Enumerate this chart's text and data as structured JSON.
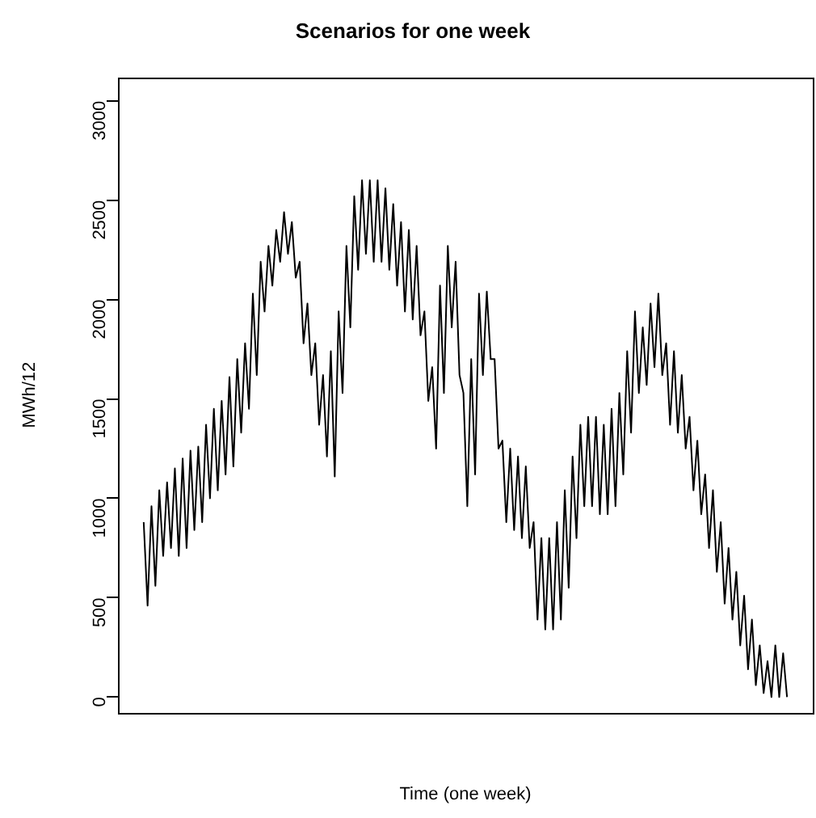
{
  "chart_data": {
    "type": "line",
    "title": "Scenarios for one week",
    "xlabel": "Time (one week)",
    "ylabel": "MWh/12",
    "categories": [
      null,
      null,
      null,
      null,
      null,
      null,
      null,
      null,
      null,
      null,
      null,
      null,
      null,
      null,
      null,
      null,
      null,
      null,
      null,
      null,
      null,
      null,
      null,
      null,
      null,
      null,
      null,
      null,
      null,
      null,
      null,
      null,
      null,
      null,
      null,
      null,
      null,
      null,
      null,
      null,
      null,
      null,
      null,
      null,
      null,
      null,
      null,
      null,
      null,
      null,
      null,
      null,
      null,
      null,
      null,
      null,
      null,
      null,
      null,
      null,
      null,
      null,
      null,
      null,
      null,
      null,
      null,
      null,
      null,
      null,
      null,
      null,
      null,
      null,
      null,
      null,
      null,
      null,
      null,
      null,
      null,
      null,
      null,
      null,
      null,
      null,
      null,
      null,
      null,
      null,
      null,
      null,
      null,
      null,
      null,
      null,
      null,
      null,
      null,
      null,
      null,
      null,
      null,
      null,
      null,
      null,
      null,
      null,
      null,
      null,
      null,
      null,
      null,
      null,
      null,
      null,
      null,
      null,
      null,
      null,
      null,
      null,
      null,
      null,
      null,
      null,
      null,
      null,
      null,
      null,
      null,
      null,
      null,
      null,
      null,
      null,
      null,
      null,
      null,
      null,
      null,
      null,
      null,
      null,
      null,
      null,
      null,
      null,
      null,
      null,
      null,
      null,
      null,
      null,
      null,
      null,
      null,
      null,
      null,
      null,
      null,
      null,
      null,
      null,
      null,
      null
    ],
    "series": [
      {
        "color": "#000000",
        "values": [
          880,
          460,
          960,
          560,
          1040,
          710,
          1080,
          750,
          1150,
          710,
          1200,
          750,
          1240,
          840,
          1260,
          880,
          1370,
          1000,
          1450,
          1040,
          1490,
          1120,
          1610,
          1160,
          1700,
          1330,
          1780,
          1450,
          2030,
          1620,
          2190,
          1940,
          2270,
          2070,
          2350,
          2190,
          2440,
          2230,
          2390,
          2110,
          2190,
          1780,
          1980,
          1620,
          1780,
          1370,
          1620,
          1210,
          1740,
          1110,
          1940,
          1530,
          2270,
          1860,
          2520,
          2150,
          2600,
          2230,
          2600,
          2190,
          2600,
          2190,
          2560,
          2150,
          2480,
          2070,
          2390,
          1940,
          2350,
          1900,
          2270,
          1820,
          1940,
          1490,
          1660,
          1250,
          2070,
          1530,
          2270,
          1860,
          2190,
          1620,
          1530,
          960,
          1700,
          1120,
          2030,
          1620,
          2040,
          1700,
          1700,
          1250,
          1290,
          880,
          1250,
          840,
          1210,
          800,
          1160,
          750,
          880,
          390,
          800,
          340,
          800,
          340,
          880,
          390,
          1040,
          550,
          1210,
          800,
          1370,
          960,
          1410,
          960,
          1410,
          920,
          1370,
          920,
          1450,
          960,
          1530,
          1120,
          1740,
          1330,
          1940,
          1530,
          1860,
          1570,
          1980,
          1660,
          2030,
          1620,
          1780,
          1370,
          1740,
          1330,
          1620,
          1250,
          1410,
          1040,
          1290,
          920,
          1120,
          750,
          1040,
          630,
          880,
          470,
          750,
          390,
          630,
          260,
          510,
          140,
          390,
          60,
          260,
          20,
          180,
          0,
          260,
          0,
          220,
          0
        ]
      }
    ],
    "ylim": [
      -80,
      3120
    ],
    "yticks": [
      0,
      500,
      1000,
      1500,
      2000,
      2500,
      3000
    ],
    "tick_labels": "y",
    "grid": false,
    "legend": false,
    "marker": "none",
    "line_style": "solid"
  }
}
